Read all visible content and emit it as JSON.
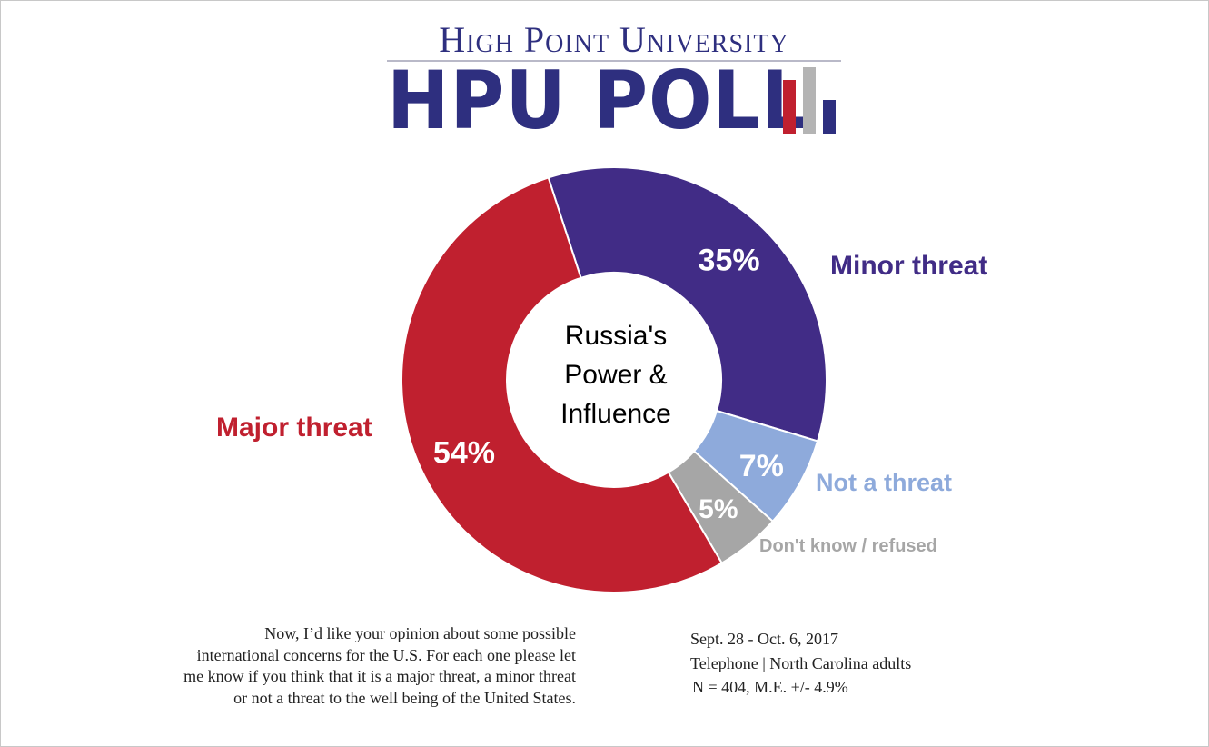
{
  "header": {
    "university": "High Point University",
    "poll_name": "HPU POLL",
    "logo_bar_colors": [
      "#c0202f",
      "#b4b4b4",
      "#2e2f7f"
    ]
  },
  "chart_data": {
    "type": "pie",
    "donut": true,
    "center_label_lines": [
      "Russia's",
      "Power &",
      "Influence"
    ],
    "slices": [
      {
        "label": "Minor threat",
        "value": 35,
        "value_label": "35%",
        "color": "#412c86",
        "label_color": "#412c86"
      },
      {
        "label": "Not a threat",
        "value": 7,
        "value_label": "7%",
        "color": "#8eaadb",
        "label_color": "#8eaadb"
      },
      {
        "label": "Don't know / refused",
        "value": 5,
        "value_label": "5%",
        "color": "#a6a6a6",
        "label_color": "#a6a6a6"
      },
      {
        "label": "Major threat",
        "value": 54,
        "value_label": "54%",
        "color": "#c0202f",
        "label_color": "#c0202f"
      }
    ]
  },
  "footer": {
    "question_lines": [
      "Now, I’d like your opinion about some possible",
      "international concerns for the U.S. For each one please let",
      "me know if you think that it is a major threat, a minor threat",
      "or not a threat to the well being of the United States."
    ],
    "dates": "Sept. 28 - Oct. 6, 2017",
    "method": "Telephone | North Carolina adults",
    "sample": "N = 404, M.E. +/- 4.9%"
  }
}
